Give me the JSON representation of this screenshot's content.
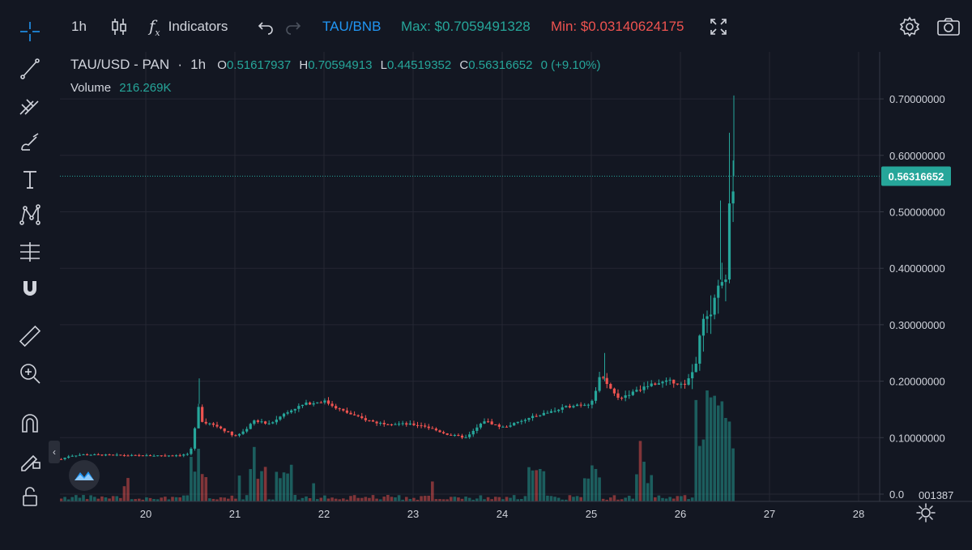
{
  "toolbar": {
    "interval": "1h",
    "indicators_label": "Indicators",
    "pair": "TAU/BNB",
    "max_text": "Max: $0.7059491328",
    "min_text": "Min: $0.03140624175",
    "colors": {
      "pair": "#2196f3",
      "max": "#26a69a",
      "min": "#ef5350"
    }
  },
  "sidebar": {
    "tools": [
      "crosshair-icon",
      "trend-line-icon",
      "fib-icon",
      "brush-icon",
      "text-icon",
      "pattern-icon",
      "measure-icon",
      "magnet-icon",
      "ruler-icon",
      "zoom-icon",
      "magnet2-icon",
      "lock-drawing-icon",
      "unlock-icon"
    ]
  },
  "legend": {
    "symbol": "TAU/USD - PAN",
    "interval": "1h",
    "o_key": "O",
    "o_val": "0.51617937",
    "h_key": "H",
    "h_val": "0.70594913",
    "l_key": "L",
    "l_val": "0.44519352",
    "c_key": "C",
    "c_val": "0.56316652",
    "change": "0 (+9.10%)",
    "volume_label": "Volume",
    "volume_value": "216.269K"
  },
  "price_badge": "0.56316652",
  "volume_axis_label": "001387",
  "chart_data": {
    "type": "candlestick",
    "x_ticks": [
      "20",
      "21",
      "22",
      "23",
      "24",
      "25",
      "26",
      "27",
      "28"
    ],
    "y_ticks": [
      "0.70000000",
      "0.60000000",
      "0.50000000",
      "0.40000000",
      "0.30000000",
      "0.20000000",
      "0.10000000",
      "0.0"
    ],
    "ylim": [
      0.0,
      0.77
    ],
    "last_price": 0.56316652,
    "colors": {
      "up": "#26a69a",
      "down": "#ef5350",
      "grid": "#242733",
      "bg": "#131722",
      "text": "#d1d4dc"
    },
    "series_keypoints": [
      [
        19.05,
        0.062
      ],
      [
        19.15,
        0.068
      ],
      [
        19.3,
        0.07
      ],
      [
        19.6,
        0.069
      ],
      [
        20.0,
        0.068
      ],
      [
        20.4,
        0.069
      ],
      [
        20.5,
        0.072
      ],
      [
        20.6,
        0.16
      ],
      [
        20.62,
        0.13
      ],
      [
        20.8,
        0.12
      ],
      [
        21.0,
        0.103
      ],
      [
        21.1,
        0.11
      ],
      [
        21.2,
        0.13
      ],
      [
        21.4,
        0.125
      ],
      [
        21.6,
        0.148
      ],
      [
        21.8,
        0.16
      ],
      [
        22.0,
        0.165
      ],
      [
        22.2,
        0.148
      ],
      [
        22.4,
        0.135
      ],
      [
        22.6,
        0.126
      ],
      [
        22.9,
        0.124
      ],
      [
        23.1,
        0.122
      ],
      [
        23.4,
        0.105
      ],
      [
        23.6,
        0.1
      ],
      [
        23.8,
        0.13
      ],
      [
        24.0,
        0.118
      ],
      [
        24.2,
        0.128
      ],
      [
        24.4,
        0.14
      ],
      [
        24.6,
        0.148
      ],
      [
        24.8,
        0.158
      ],
      [
        25.0,
        0.16
      ],
      [
        25.1,
        0.21
      ],
      [
        25.3,
        0.17
      ],
      [
        25.5,
        0.182
      ],
      [
        25.7,
        0.196
      ],
      [
        25.9,
        0.2
      ],
      [
        26.05,
        0.192
      ],
      [
        26.15,
        0.22
      ],
      [
        26.25,
        0.3
      ],
      [
        26.35,
        0.32
      ],
      [
        26.45,
        0.38
      ],
      [
        26.5,
        0.34
      ],
      [
        26.55,
        0.5
      ],
      [
        26.6,
        0.563
      ]
    ],
    "big_wicks": [
      [
        20.6,
        0.205
      ],
      [
        25.15,
        0.25
      ],
      [
        26.45,
        0.52
      ],
      [
        26.55,
        0.64
      ],
      [
        26.6,
        0.706
      ]
    ],
    "volume_peak_x": [
      20.58,
      21.25,
      21.55,
      24.38,
      25.0,
      25.6,
      26.3,
      26.6
    ]
  }
}
